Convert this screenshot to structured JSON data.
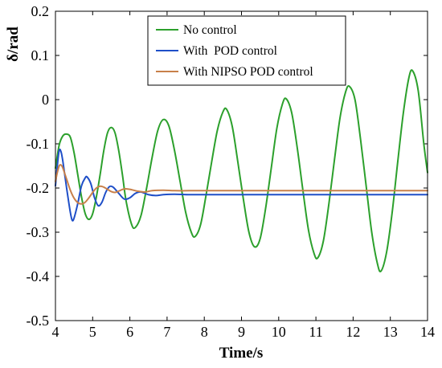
{
  "chart_data": {
    "type": "line",
    "title": "",
    "xlabel": "Time/s",
    "ylabel": "δ/rad",
    "xlim": [
      4,
      14
    ],
    "ylim": [
      -0.5,
      0.2
    ],
    "xticks": [
      4,
      5,
      6,
      7,
      8,
      9,
      10,
      11,
      12,
      13,
      14
    ],
    "yticks": [
      -0.5,
      -0.4,
      -0.3,
      -0.2,
      -0.1,
      0,
      0.1,
      0.2
    ],
    "xtick_labels": [
      "4",
      "5",
      "6",
      "7",
      "8",
      "9",
      "10",
      "11",
      "12",
      "13",
      "14"
    ],
    "ytick_labels": [
      "-0.5",
      "-0.4",
      "-0.3",
      "-0.2",
      "-0.1",
      "0",
      "0.1",
      "0.2"
    ],
    "grid": false,
    "legend_position": "top-right",
    "series": [
      {
        "name": "No control",
        "color": "#2ca02c",
        "points": [
          [
            4.0,
            -0.155
          ],
          [
            4.1,
            -0.103
          ],
          [
            4.2,
            -0.082
          ],
          [
            4.3,
            -0.078
          ],
          [
            4.4,
            -0.085
          ],
          [
            4.5,
            -0.12
          ],
          [
            4.6,
            -0.17
          ],
          [
            4.7,
            -0.22
          ],
          [
            4.8,
            -0.258
          ],
          [
            4.9,
            -0.271
          ],
          [
            5.0,
            -0.258
          ],
          [
            5.1,
            -0.22
          ],
          [
            5.2,
            -0.17
          ],
          [
            5.3,
            -0.115
          ],
          [
            5.4,
            -0.075
          ],
          [
            5.5,
            -0.063
          ],
          [
            5.6,
            -0.075
          ],
          [
            5.7,
            -0.115
          ],
          [
            5.8,
            -0.17
          ],
          [
            5.9,
            -0.23
          ],
          [
            6.05,
            -0.283
          ],
          [
            6.15,
            -0.289
          ],
          [
            6.3,
            -0.262
          ],
          [
            6.45,
            -0.2
          ],
          [
            6.6,
            -0.13
          ],
          [
            6.75,
            -0.07
          ],
          [
            6.9,
            -0.045
          ],
          [
            7.05,
            -0.06
          ],
          [
            7.2,
            -0.115
          ],
          [
            7.35,
            -0.185
          ],
          [
            7.5,
            -0.255
          ],
          [
            7.65,
            -0.3
          ],
          [
            7.75,
            -0.31
          ],
          [
            7.9,
            -0.283
          ],
          [
            8.05,
            -0.215
          ],
          [
            8.2,
            -0.14
          ],
          [
            8.35,
            -0.07
          ],
          [
            8.5,
            -0.028
          ],
          [
            8.6,
            -0.022
          ],
          [
            8.75,
            -0.06
          ],
          [
            8.9,
            -0.14
          ],
          [
            9.05,
            -0.225
          ],
          [
            9.2,
            -0.3
          ],
          [
            9.35,
            -0.333
          ],
          [
            9.5,
            -0.315
          ],
          [
            9.65,
            -0.245
          ],
          [
            9.8,
            -0.155
          ],
          [
            9.95,
            -0.065
          ],
          [
            10.1,
            -0.01
          ],
          [
            10.2,
            0.002
          ],
          [
            10.35,
            -0.03
          ],
          [
            10.5,
            -0.11
          ],
          [
            10.65,
            -0.205
          ],
          [
            10.8,
            -0.295
          ],
          [
            10.95,
            -0.348
          ],
          [
            11.05,
            -0.358
          ],
          [
            11.2,
            -0.32
          ],
          [
            11.35,
            -0.235
          ],
          [
            11.5,
            -0.135
          ],
          [
            11.65,
            -0.04
          ],
          [
            11.8,
            0.018
          ],
          [
            11.9,
            0.03
          ],
          [
            12.05,
            0.0
          ],
          [
            12.2,
            -0.09
          ],
          [
            12.35,
            -0.195
          ],
          [
            12.5,
            -0.3
          ],
          [
            12.65,
            -0.37
          ],
          [
            12.75,
            -0.388
          ],
          [
            12.9,
            -0.345
          ],
          [
            13.05,
            -0.255
          ],
          [
            13.2,
            -0.14
          ],
          [
            13.35,
            -0.03
          ],
          [
            13.5,
            0.05
          ],
          [
            13.6,
            0.065
          ],
          [
            13.75,
            0.02
          ],
          [
            13.9,
            -0.1
          ],
          [
            14.0,
            -0.165
          ]
        ]
      },
      {
        "name": "With  POD control",
        "color": "#1f4fc8",
        "points": [
          [
            4.0,
            -0.195
          ],
          [
            4.05,
            -0.15
          ],
          [
            4.1,
            -0.115
          ],
          [
            4.15,
            -0.118
          ],
          [
            4.2,
            -0.14
          ],
          [
            4.3,
            -0.2
          ],
          [
            4.4,
            -0.255
          ],
          [
            4.45,
            -0.273
          ],
          [
            4.5,
            -0.268
          ],
          [
            4.6,
            -0.235
          ],
          [
            4.7,
            -0.195
          ],
          [
            4.8,
            -0.177
          ],
          [
            4.85,
            -0.175
          ],
          [
            4.95,
            -0.19
          ],
          [
            5.05,
            -0.222
          ],
          [
            5.15,
            -0.24
          ],
          [
            5.25,
            -0.232
          ],
          [
            5.35,
            -0.21
          ],
          [
            5.45,
            -0.197
          ],
          [
            5.55,
            -0.198
          ],
          [
            5.7,
            -0.212
          ],
          [
            5.85,
            -0.225
          ],
          [
            6.0,
            -0.222
          ],
          [
            6.15,
            -0.212
          ],
          [
            6.3,
            -0.209
          ],
          [
            6.5,
            -0.215
          ],
          [
            6.7,
            -0.217
          ],
          [
            6.9,
            -0.215
          ],
          [
            7.2,
            -0.214
          ],
          [
            7.6,
            -0.215
          ],
          [
            8.0,
            -0.215
          ],
          [
            9.0,
            -0.215
          ],
          [
            10.0,
            -0.215
          ],
          [
            11.0,
            -0.215
          ],
          [
            12.0,
            -0.215
          ],
          [
            13.0,
            -0.215
          ],
          [
            14.0,
            -0.215
          ]
        ]
      },
      {
        "name": "With NIPSO POD control",
        "color": "#c8804a",
        "points": [
          [
            4.0,
            -0.185
          ],
          [
            4.05,
            -0.165
          ],
          [
            4.1,
            -0.15
          ],
          [
            4.15,
            -0.148
          ],
          [
            4.2,
            -0.155
          ],
          [
            4.3,
            -0.18
          ],
          [
            4.4,
            -0.205
          ],
          [
            4.5,
            -0.223
          ],
          [
            4.6,
            -0.233
          ],
          [
            4.7,
            -0.236
          ],
          [
            4.8,
            -0.232
          ],
          [
            4.9,
            -0.222
          ],
          [
            5.0,
            -0.21
          ],
          [
            5.1,
            -0.2
          ],
          [
            5.2,
            -0.196
          ],
          [
            5.3,
            -0.198
          ],
          [
            5.4,
            -0.203
          ],
          [
            5.5,
            -0.208
          ],
          [
            5.6,
            -0.21
          ],
          [
            5.7,
            -0.207
          ],
          [
            5.85,
            -0.202
          ],
          [
            6.0,
            -0.203
          ],
          [
            6.2,
            -0.207
          ],
          [
            6.4,
            -0.209
          ],
          [
            6.6,
            -0.206
          ],
          [
            6.9,
            -0.205
          ],
          [
            7.2,
            -0.206
          ],
          [
            7.6,
            -0.206
          ],
          [
            8.0,
            -0.206
          ],
          [
            9.0,
            -0.206
          ],
          [
            10.0,
            -0.206
          ],
          [
            11.0,
            -0.206
          ],
          [
            12.0,
            -0.206
          ],
          [
            13.0,
            -0.206
          ],
          [
            14.0,
            -0.206
          ]
        ]
      }
    ]
  }
}
